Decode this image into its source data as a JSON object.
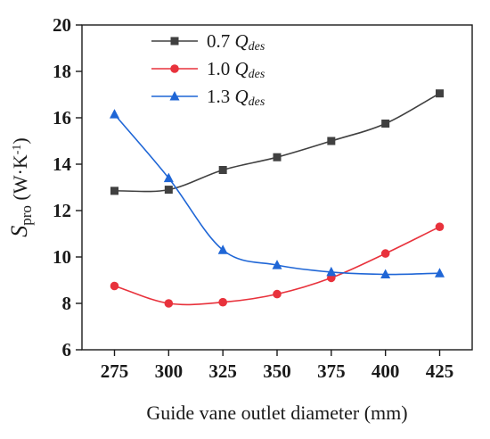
{
  "chart_data": {
    "type": "line",
    "x": [
      275,
      300,
      325,
      350,
      375,
      400,
      425
    ],
    "xlabel": "Guide vane outlet diameter (mm)",
    "ylabel": {
      "symbol": "S",
      "subscript": "pro",
      "unit_open": " (W·K",
      "unit_exp": "-1",
      "unit_close": ")"
    },
    "xlim": [
      260,
      440
    ],
    "ylim": [
      6,
      20
    ],
    "xticks": [
      275,
      300,
      325,
      350,
      375,
      400,
      425
    ],
    "yticks": [
      6,
      8,
      10,
      12,
      14,
      16,
      18,
      20
    ],
    "grid": false,
    "legend_position": "top-center",
    "series": [
      {
        "name": "0.7 Qdes",
        "legend_number": "0.7",
        "legend_symbol": "Q",
        "legend_sub": "des",
        "marker": "square",
        "color": "#404040",
        "values": [
          12.85,
          12.9,
          13.75,
          14.3,
          15.0,
          15.75,
          17.05
        ]
      },
      {
        "name": "1.0 Qdes",
        "legend_number": "1.0",
        "legend_symbol": "Q",
        "legend_sub": "des",
        "marker": "circle",
        "color": "#e8323c",
        "values": [
          8.75,
          8.0,
          8.05,
          8.4,
          9.1,
          10.15,
          11.3
        ]
      },
      {
        "name": "1.3 Qdes",
        "legend_number": "1.3",
        "legend_symbol": "Q",
        "legend_sub": "des",
        "marker": "triangle",
        "color": "#1f66d6",
        "values": [
          16.15,
          13.4,
          10.3,
          9.65,
          9.35,
          9.25,
          9.3
        ]
      }
    ]
  }
}
